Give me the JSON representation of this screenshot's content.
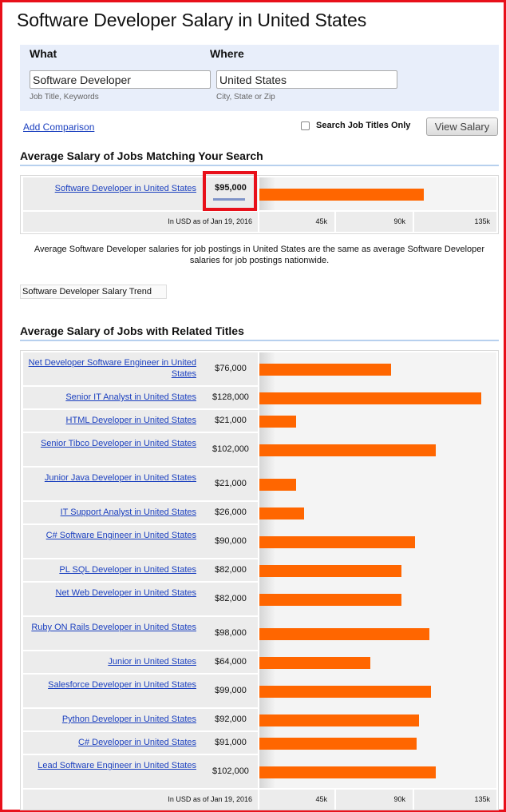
{
  "page": {
    "title": "Software Developer Salary in United States"
  },
  "search": {
    "what_label": "What",
    "where_label": "Where",
    "what_value": "Software Developer",
    "where_value": "United States",
    "what_hint": "Job Title, Keywords",
    "where_hint": "City, State or Zip",
    "add_comparison": "Add Comparison",
    "search_titles_only": "Search Job Titles Only",
    "search_titles_only_checked": false,
    "view_salary": "View Salary"
  },
  "matching": {
    "heading": "Average Salary of Jobs Matching Your Search",
    "job": "Software Developer in United States",
    "salary": "$95,000",
    "value": 95000,
    "axis_note": "In USD as of Jan 19, 2016",
    "ticks": [
      "45k",
      "90k",
      "135k"
    ],
    "description": "Average Software Developer salaries for job postings in United States are the same as average Software Developer salaries for job postings nationwide.",
    "trend_label": "Software Developer Salary Trend"
  },
  "related": {
    "heading": "Average Salary of Jobs with Related Titles",
    "axis_note": "In USD as of Jan 19, 2016",
    "ticks": [
      "45k",
      "90k",
      "135k"
    ],
    "rows": [
      {
        "title": "Net Developer Software Engineer in United States",
        "salary": "$76,000",
        "value": 76000,
        "two_line": true
      },
      {
        "title": "Senior IT Analyst in United States",
        "salary": "$128,000",
        "value": 128000,
        "two_line": false
      },
      {
        "title": "HTML Developer in United States",
        "salary": "$21,000",
        "value": 21000,
        "two_line": false
      },
      {
        "title": "Senior Tibco Developer in United States",
        "salary": "$102,000",
        "value": 102000,
        "two_line": true
      },
      {
        "title": "Junior Java Developer in United States",
        "salary": "$21,000",
        "value": 21000,
        "two_line": true
      },
      {
        "title": "IT Support Analyst in United States",
        "salary": "$26,000",
        "value": 26000,
        "two_line": false
      },
      {
        "title": "C# Software Engineer in United States",
        "salary": "$90,000",
        "value": 90000,
        "two_line": true
      },
      {
        "title": "PL SQL Developer in United States",
        "salary": "$82,000",
        "value": 82000,
        "two_line": false
      },
      {
        "title": "Net Web Developer in United States",
        "salary": "$82,000",
        "value": 82000,
        "two_line": true
      },
      {
        "title": "Ruby ON Rails Developer in United States",
        "salary": "$98,000",
        "value": 98000,
        "two_line": true
      },
      {
        "title": "Junior in United States",
        "salary": "$64,000",
        "value": 64000,
        "two_line": false
      },
      {
        "title": "Salesforce Developer in United States",
        "salary": "$99,000",
        "value": 99000,
        "two_line": true
      },
      {
        "title": "Python Developer in United States",
        "salary": "$92,000",
        "value": 92000,
        "two_line": false
      },
      {
        "title": "C# Developer in United States",
        "salary": "$91,000",
        "value": 91000,
        "two_line": false
      },
      {
        "title": "Lead Software Engineer in United States",
        "salary": "$102,000",
        "value": 102000,
        "two_line": true
      }
    ]
  },
  "colors": {
    "bar": "#ff6600",
    "link": "#1a3fbf",
    "highlight": "#e8101a",
    "panel": "#e8eefa"
  }
}
